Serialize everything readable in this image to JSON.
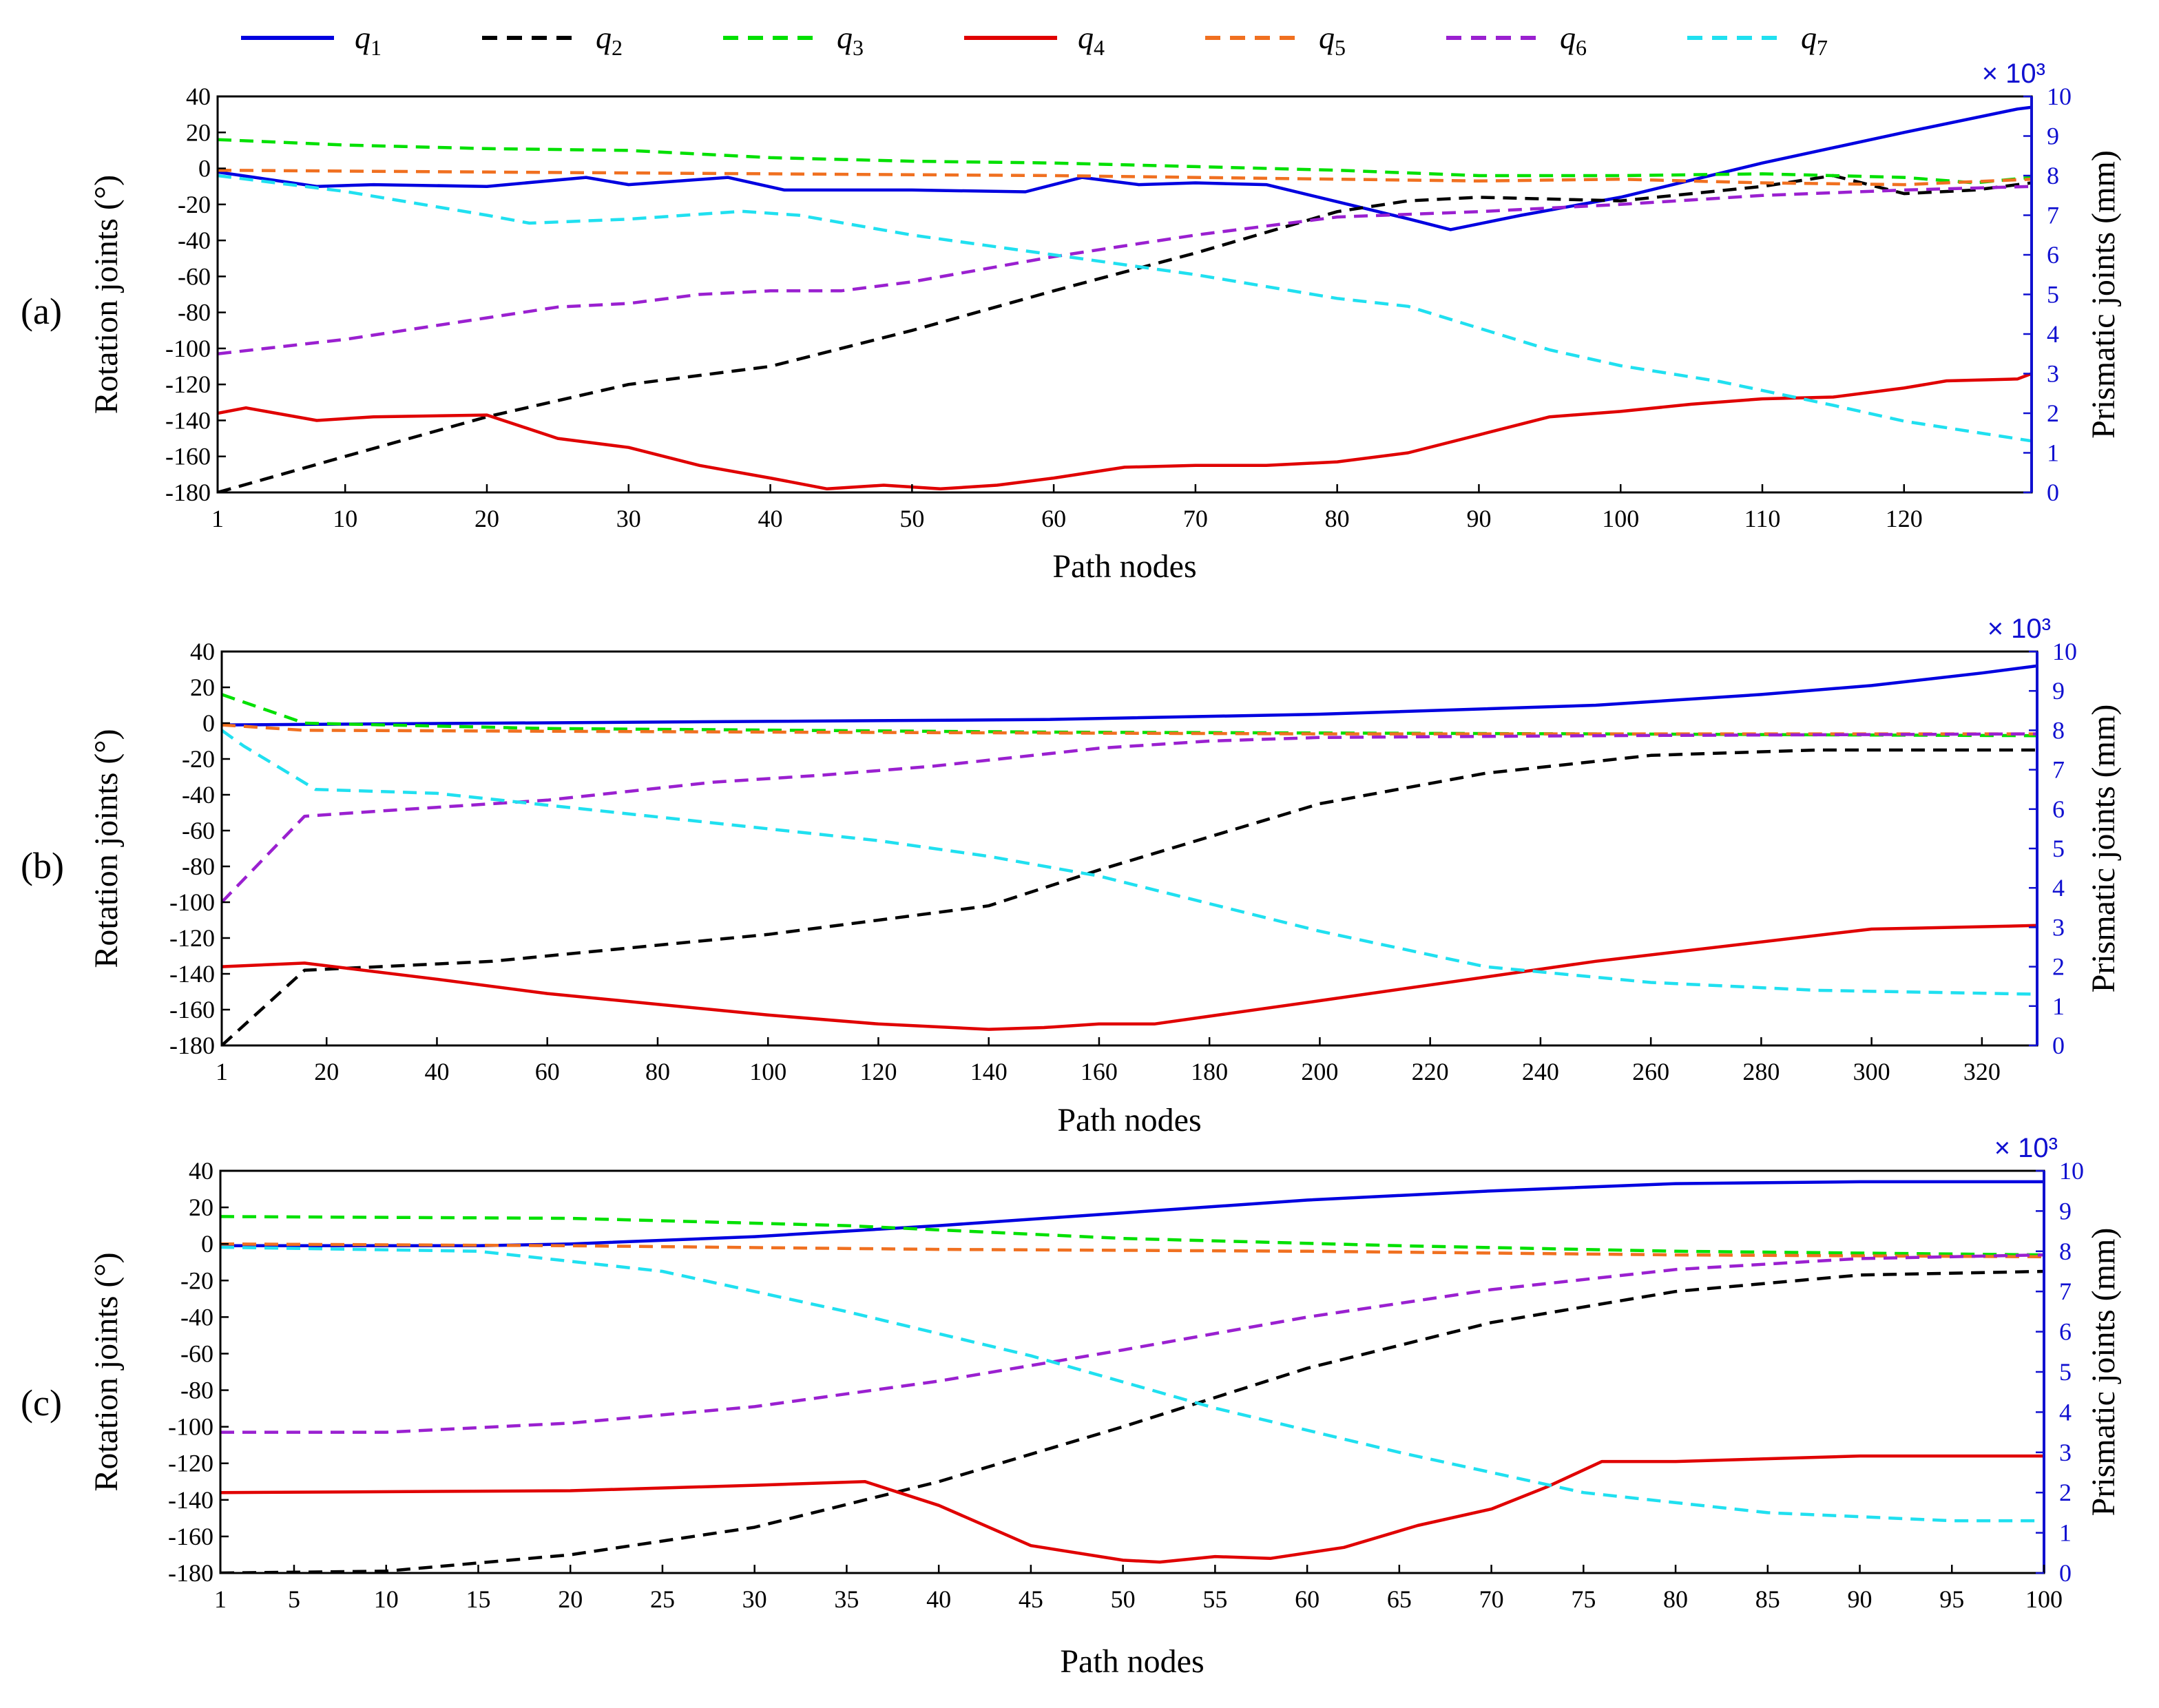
{
  "legend": [
    {
      "symbol": "q",
      "sub": "1",
      "color": "#0000e0",
      "dash": false
    },
    {
      "symbol": "q",
      "sub": "2",
      "color": "#000000",
      "dash": true
    },
    {
      "symbol": "q",
      "sub": "3",
      "color": "#00e000",
      "dash": true
    },
    {
      "symbol": "q",
      "sub": "4",
      "color": "#e00000",
      "dash": false
    },
    {
      "symbol": "q",
      "sub": "5",
      "color": "#f07020",
      "dash": true
    },
    {
      "symbol": "q",
      "sub": "6",
      "color": "#9a20d0",
      "dash": true
    },
    {
      "symbol": "q",
      "sub": "7",
      "color": "#20e0f0",
      "dash": true
    }
  ],
  "chart_data": [
    {
      "type": "line",
      "panel_label": "(a)",
      "xlabel": "Path nodes",
      "ylabel": "Rotation joints (°)",
      "ylabel2": "Prismatic joints (mm)",
      "multiplier": "× 10³",
      "xlim": [
        1,
        129
      ],
      "ylim": [
        -180,
        40
      ],
      "y2lim": [
        0,
        10
      ],
      "xticks": [
        1,
        10,
        20,
        30,
        40,
        50,
        60,
        70,
        80,
        90,
        100,
        110,
        120
      ],
      "yticks": [
        40,
        20,
        0,
        -20,
        -40,
        -60,
        -80,
        -100,
        -120,
        -140,
        -160,
        -180
      ],
      "y2ticks": [
        0,
        1,
        2,
        3,
        4,
        5,
        6,
        7,
        8,
        9,
        10
      ],
      "series": [
        {
          "name": "q1",
          "axis": "left",
          "x": [
            1,
            8,
            12,
            20,
            27,
            30,
            37,
            41,
            50,
            58,
            62,
            66,
            70,
            75,
            85,
            88,
            93,
            100,
            110,
            120,
            128,
            129
          ],
          "y": [
            -2,
            -10,
            -9,
            -10,
            -5,
            -9,
            -5,
            -12,
            -12,
            -13,
            -5,
            -9,
            -8,
            -9,
            -28,
            -34,
            -26,
            -16,
            3,
            20,
            33,
            34
          ]
        },
        {
          "name": "q2",
          "axis": "left",
          "x": [
            1,
            10,
            20,
            30,
            40,
            50,
            60,
            70,
            80,
            85,
            90,
            100,
            110,
            115,
            120,
            125,
            129
          ],
          "y": [
            -180,
            -160,
            -138,
            -120,
            -110,
            -90,
            -68,
            -47,
            -24,
            -18,
            -16,
            -18,
            -10,
            -4,
            -14,
            -12,
            -8
          ]
        },
        {
          "name": "q3",
          "axis": "left",
          "x": [
            1,
            10,
            20,
            30,
            40,
            50,
            60,
            70,
            80,
            90,
            100,
            110,
            120,
            125,
            129
          ],
          "y": [
            16,
            13,
            11,
            10,
            6,
            4,
            3,
            1,
            -1,
            -4,
            -4,
            -3,
            -5,
            -8,
            -5
          ]
        },
        {
          "name": "q4",
          "axis": "left",
          "x": [
            1,
            3,
            8,
            12,
            20,
            25,
            30,
            35,
            40,
            44,
            48,
            52,
            56,
            60,
            65,
            70,
            75,
            80,
            85,
            90,
            95,
            100,
            105,
            110,
            115,
            120,
            123,
            128,
            129
          ],
          "y": [
            -136,
            -133,
            -140,
            -138,
            -137,
            -150,
            -155,
            -165,
            -172,
            -178,
            -176,
            -178,
            -176,
            -172,
            -166,
            -165,
            -165,
            -163,
            -158,
            -148,
            -138,
            -135,
            -131,
            -128,
            -127,
            -122,
            -118,
            -117,
            -114
          ]
        },
        {
          "name": "q5",
          "axis": "left",
          "x": [
            1,
            20,
            40,
            60,
            80,
            90,
            100,
            110,
            120,
            129
          ],
          "y": [
            -1,
            -2,
            -3,
            -4,
            -6,
            -7,
            -6,
            -8,
            -9,
            -6
          ]
        },
        {
          "name": "q6",
          "axis": "left",
          "x": [
            1,
            10,
            20,
            25,
            30,
            35,
            40,
            45,
            50,
            60,
            70,
            80,
            90,
            100,
            110,
            120,
            129
          ],
          "y": [
            -103,
            -95,
            -83,
            -77,
            -75,
            -70,
            -68,
            -68,
            -63,
            -49,
            -37,
            -27,
            -24,
            -20,
            -15,
            -12,
            -10
          ]
        },
        {
          "name": "q7",
          "axis": "right",
          "x": [
            1,
            10,
            20,
            23,
            30,
            38,
            42,
            50,
            60,
            70,
            80,
            85,
            95,
            100,
            107,
            115,
            120,
            129
          ],
          "y": [
            8.0,
            7.6,
            7.0,
            6.8,
            6.9,
            7.1,
            7.0,
            6.5,
            6.0,
            5.5,
            4.9,
            4.7,
            3.6,
            3.2,
            2.8,
            2.2,
            1.8,
            1.3
          ]
        }
      ]
    },
    {
      "type": "line",
      "panel_label": "(b)",
      "xlabel": "Path nodes",
      "ylabel": "Rotation joints (°)",
      "ylabel2": "Prismatic joints (mm)",
      "multiplier": "× 10³",
      "xlim": [
        1,
        330
      ],
      "ylim": [
        -180,
        40
      ],
      "y2lim": [
        0,
        10
      ],
      "xticks": [
        1,
        20,
        40,
        60,
        80,
        100,
        120,
        140,
        160,
        180,
        200,
        220,
        240,
        260,
        280,
        300,
        320
      ],
      "yticks": [
        40,
        20,
        0,
        -20,
        -40,
        -60,
        -80,
        -100,
        -120,
        -140,
        -160,
        -180
      ],
      "y2ticks": [
        0,
        1,
        2,
        3,
        4,
        5,
        6,
        7,
        8,
        9,
        10
      ],
      "series": [
        {
          "name": "q1",
          "axis": "left",
          "x": [
            1,
            50,
            100,
            150,
            200,
            250,
            280,
            300,
            320,
            330
          ],
          "y": [
            -1,
            0,
            1,
            2,
            5,
            10,
            16,
            21,
            28,
            32
          ]
        },
        {
          "name": "q2",
          "axis": "left",
          "x": [
            1,
            16,
            50,
            100,
            140,
            160,
            200,
            230,
            260,
            290,
            330
          ],
          "y": [
            -180,
            -138,
            -133,
            -118,
            -102,
            -82,
            -45,
            -28,
            -18,
            -15,
            -15
          ]
        },
        {
          "name": "q3",
          "axis": "left",
          "x": [
            1,
            16,
            60,
            150,
            250,
            330
          ],
          "y": [
            16,
            0,
            -3,
            -5,
            -6,
            -7
          ]
        },
        {
          "name": "q4",
          "axis": "left",
          "x": [
            1,
            16,
            40,
            60,
            80,
            100,
            120,
            140,
            150,
            160,
            170,
            200,
            250,
            300,
            330
          ],
          "y": [
            -136,
            -134,
            -143,
            -151,
            -157,
            -163,
            -168,
            -171,
            -170,
            -168,
            -168,
            -155,
            -133,
            -115,
            -113
          ]
        },
        {
          "name": "q5",
          "axis": "left",
          "x": [
            1,
            16,
            100,
            200,
            330
          ],
          "y": [
            -1,
            -4,
            -5,
            -6,
            -6
          ]
        },
        {
          "name": "q6",
          "axis": "left",
          "x": [
            1,
            16,
            30,
            60,
            90,
            110,
            130,
            160,
            180,
            200,
            250,
            330
          ],
          "y": [
            -100,
            -52,
            -49,
            -43,
            -33,
            -29,
            -24,
            -14,
            -10,
            -8,
            -7,
            -6
          ]
        },
        {
          "name": "q7",
          "axis": "right",
          "x": [
            1,
            5,
            18,
            40,
            60,
            80,
            100,
            120,
            140,
            160,
            180,
            200,
            230,
            260,
            290,
            330
          ],
          "y": [
            8.0,
            7.6,
            6.5,
            6.4,
            6.1,
            5.8,
            5.5,
            5.2,
            4.8,
            4.3,
            3.6,
            2.9,
            2.0,
            1.6,
            1.4,
            1.3
          ]
        }
      ]
    },
    {
      "type": "line",
      "panel_label": "(c)",
      "xlabel": "Path nodes",
      "ylabel": "Rotation joints (°)",
      "ylabel2": "Prismatic joints (mm)",
      "multiplier": "× 10³",
      "xlim": [
        1,
        100
      ],
      "ylim": [
        -180,
        40
      ],
      "y2lim": [
        0,
        10
      ],
      "xticks": [
        1,
        5,
        10,
        15,
        20,
        25,
        30,
        35,
        40,
        45,
        50,
        55,
        60,
        65,
        70,
        75,
        80,
        85,
        90,
        95,
        100
      ],
      "yticks": [
        40,
        20,
        0,
        -20,
        -40,
        -60,
        -80,
        -100,
        -120,
        -140,
        -160,
        -180
      ],
      "y2ticks": [
        0,
        1,
        2,
        3,
        4,
        5,
        6,
        7,
        8,
        9,
        10
      ],
      "series": [
        {
          "name": "q1",
          "axis": "left",
          "x": [
            1,
            15,
            20,
            30,
            40,
            50,
            60,
            70,
            80,
            90,
            100
          ],
          "y": [
            -1,
            -1,
            0,
            4,
            10,
            17,
            24,
            29,
            33,
            34,
            34
          ]
        },
        {
          "name": "q2",
          "axis": "left",
          "x": [
            1,
            10,
            20,
            30,
            40,
            50,
            60,
            70,
            80,
            90,
            100
          ],
          "y": [
            -180,
            -179,
            -170,
            -155,
            -130,
            -100,
            -68,
            -43,
            -26,
            -17,
            -15
          ]
        },
        {
          "name": "q3",
          "axis": "left",
          "x": [
            1,
            20,
            35,
            50,
            65,
            80,
            100
          ],
          "y": [
            15,
            14,
            10,
            3,
            -1,
            -4,
            -6
          ]
        },
        {
          "name": "q4",
          "axis": "left",
          "x": [
            1,
            20,
            30,
            36,
            40,
            45,
            50,
            52,
            55,
            58,
            62,
            66,
            70,
            73,
            76,
            80,
            90,
            100
          ],
          "y": [
            -136,
            -135,
            -132,
            -130,
            -143,
            -165,
            -173,
            -174,
            -171,
            -172,
            -166,
            -154,
            -145,
            -133,
            -119,
            -119,
            -116,
            -116
          ]
        },
        {
          "name": "q5",
          "axis": "left",
          "x": [
            1,
            20,
            40,
            60,
            80,
            100
          ],
          "y": [
            0,
            -1,
            -3,
            -4,
            -6,
            -7
          ]
        },
        {
          "name": "q6",
          "axis": "left",
          "x": [
            1,
            10,
            20,
            30,
            40,
            50,
            60,
            70,
            80,
            90,
            100
          ],
          "y": [
            -103,
            -103,
            -98,
            -89,
            -75,
            -58,
            -40,
            -25,
            -14,
            -8,
            -6
          ]
        },
        {
          "name": "q7",
          "axis": "right",
          "x": [
            1,
            15,
            25,
            35,
            45,
            55,
            65,
            75,
            85,
            95,
            100
          ],
          "y": [
            8.1,
            8.0,
            7.5,
            6.5,
            5.4,
            4.1,
            3.0,
            2.0,
            1.5,
            1.3,
            1.3
          ]
        }
      ]
    }
  ]
}
